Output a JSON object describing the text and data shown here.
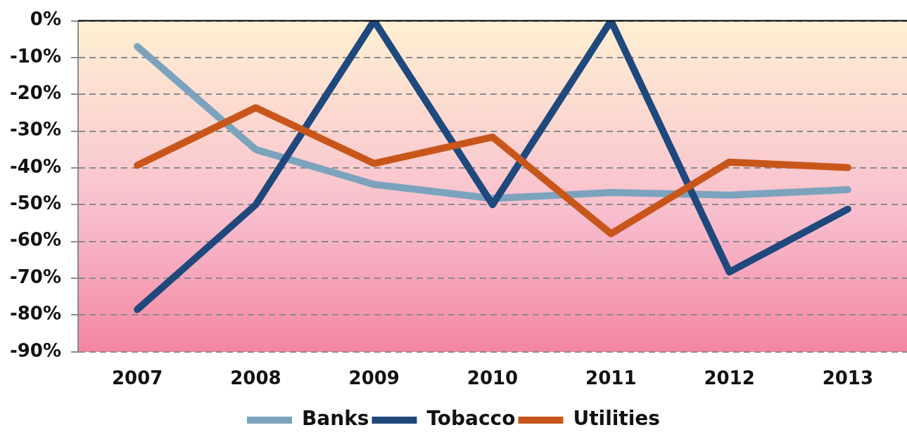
{
  "chart_data": {
    "type": "line",
    "categories": [
      "2007",
      "2008",
      "2009",
      "2010",
      "2011",
      "2012",
      "2013"
    ],
    "series": [
      {
        "name": "Banks",
        "color": "#7ba3bd",
        "values": [
          -7,
          -35,
          -44.5,
          -48.3,
          -46.7,
          -47.4,
          -45.9
        ]
      },
      {
        "name": "Tobacco",
        "color": "#1f497d",
        "values": [
          -78.5,
          -50,
          0,
          -50,
          0,
          -68.3,
          -51.2
        ]
      },
      {
        "name": "Utilities",
        "color": "#c8561a",
        "values": [
          -39.3,
          -23.6,
          -38.8,
          -31.6,
          -57.9,
          -38.4,
          -39.9
        ]
      }
    ],
    "ylim": [
      -90,
      0
    ],
    "yticks": [
      {
        "value": 0,
        "label": "0%"
      },
      {
        "value": -10,
        "label": "-10%"
      },
      {
        "value": -20,
        "label": "-20%"
      },
      {
        "value": -30,
        "label": "-30%"
      },
      {
        "value": -40,
        "label": "-40%"
      },
      {
        "value": -50,
        "label": "-50%"
      },
      {
        "value": -60,
        "label": "-60%"
      },
      {
        "value": -70,
        "label": "-70%"
      },
      {
        "value": -80,
        "label": "-80%"
      },
      {
        "value": -90,
        "label": "-90%"
      }
    ],
    "grid": "y",
    "legend": "bottom"
  }
}
